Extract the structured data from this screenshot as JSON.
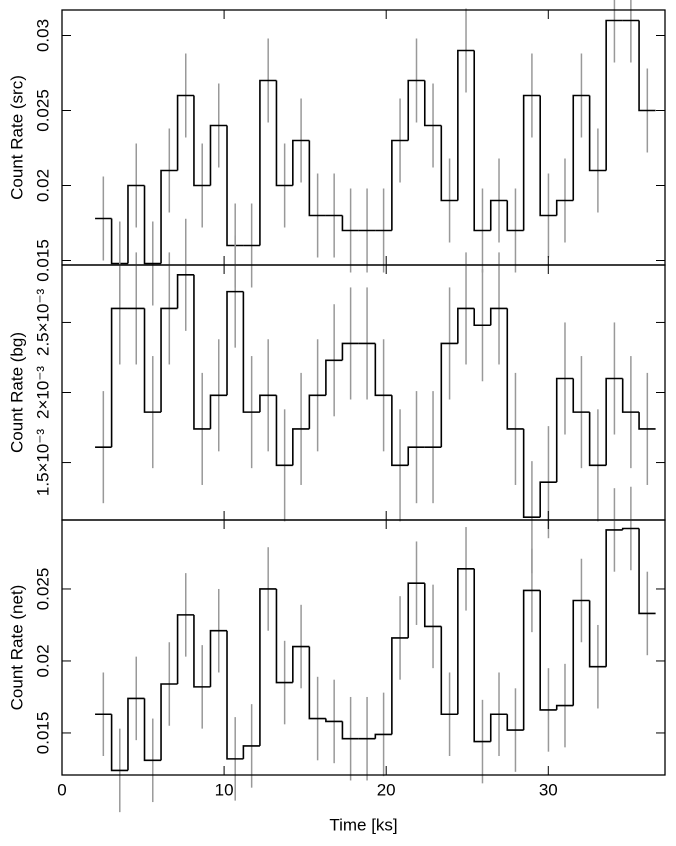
{
  "chart_data": [
    {
      "type": "histogram",
      "ylabel": "Count Rate (src)",
      "color": "#000000",
      "error_color": "#999999",
      "bins": [
        2.04,
        3.06,
        4.07,
        5.09,
        6.11,
        7.13,
        8.14,
        9.16,
        10.18,
        11.19,
        12.21,
        13.23,
        14.24,
        15.26,
        16.28,
        17.3,
        18.31,
        19.33,
        20.35,
        21.36,
        22.38,
        23.4,
        24.42,
        25.43,
        26.45,
        27.47,
        28.48,
        29.5,
        30.52,
        31.54,
        32.55,
        33.57,
        34.59,
        35.6,
        36.62
      ],
      "values": [
        0.0178,
        0.0148,
        0.02,
        0.0148,
        0.021,
        0.026,
        0.02,
        0.024,
        0.016,
        0.016,
        0.027,
        0.02,
        0.023,
        0.018,
        0.018,
        0.017,
        0.017,
        0.017,
        0.023,
        0.027,
        0.024,
        0.019,
        0.029,
        0.017,
        0.019,
        0.017,
        0.026,
        0.018,
        0.019,
        0.026,
        0.021,
        0.031,
        0.031,
        0.025
      ],
      "errors": [
        0.0028,
        0.0028,
        0.0028,
        0.0028,
        0.0028,
        0.0028,
        0.0028,
        0.0028,
        0.0028,
        0.0028,
        0.0028,
        0.0028,
        0.0028,
        0.0028,
        0.0028,
        0.0028,
        0.0028,
        0.0028,
        0.0028,
        0.0028,
        0.0028,
        0.0028,
        0.0028,
        0.0028,
        0.0028,
        0.0028,
        0.0028,
        0.0028,
        0.0028,
        0.0028,
        0.0028,
        0.0028,
        0.0028,
        0.0028
      ],
      "xlim": [
        0,
        37.2
      ],
      "xticks": [
        0,
        10,
        20,
        30
      ],
      "ylim": [
        0.0147,
        0.0317
      ],
      "yticks": [
        0.015,
        0.02,
        0.025,
        0.03
      ]
    },
    {
      "type": "histogram",
      "ylabel": "Count Rate (bg)",
      "color": "#000000",
      "error_color": "#999999",
      "bins": [
        2.04,
        3.06,
        4.07,
        5.09,
        6.11,
        7.13,
        8.14,
        9.16,
        10.18,
        11.19,
        12.21,
        13.23,
        14.24,
        15.26,
        16.28,
        17.3,
        18.31,
        19.33,
        20.35,
        21.36,
        22.38,
        23.4,
        24.42,
        25.43,
        26.45,
        27.47,
        28.48,
        29.5,
        30.52,
        31.54,
        32.55,
        33.57,
        34.59,
        35.6,
        36.62
      ],
      "values": [
        0.00161,
        0.0026,
        0.0026,
        0.00186,
        0.0026,
        0.00284,
        0.00174,
        0.00198,
        0.00272,
        0.00186,
        0.00198,
        0.00148,
        0.00174,
        0.00198,
        0.00223,
        0.00235,
        0.00235,
        0.00198,
        0.00148,
        0.00161,
        0.00161,
        0.00235,
        0.0026,
        0.00248,
        0.0026,
        0.00174,
        0.00111,
        0.00136,
        0.0021,
        0.00186,
        0.00148,
        0.0021,
        0.00186,
        0.00174
      ],
      "errors": [
        0.0004,
        0.0004,
        0.0004,
        0.0004,
        0.0004,
        0.0004,
        0.0004,
        0.0004,
        0.0004,
        0.0004,
        0.0004,
        0.0004,
        0.0004,
        0.0004,
        0.0004,
        0.0004,
        0.0004,
        0.0004,
        0.0004,
        0.0004,
        0.0004,
        0.0004,
        0.0004,
        0.0004,
        0.0004,
        0.0004,
        0.0004,
        0.0004,
        0.0004,
        0.0004,
        0.0004,
        0.0004,
        0.0004,
        0.0004
      ],
      "xlim": [
        0,
        37.2
      ],
      "xticks": [
        0,
        10,
        20,
        30
      ],
      "ylim": [
        0.00109,
        0.00291
      ],
      "yticks": [
        {
          "value": 0.0015,
          "label": "1.5×10⁻³"
        },
        {
          "value": 0.002,
          "label": "2×10⁻³"
        },
        {
          "value": 0.0025,
          "label": "2.5×10⁻³"
        }
      ]
    },
    {
      "type": "histogram",
      "ylabel": "Count Rate (net)",
      "xlabel": "Time [ks]",
      "color": "#000000",
      "error_color": "#999999",
      "bins": [
        2.04,
        3.06,
        4.07,
        5.09,
        6.11,
        7.13,
        8.14,
        9.16,
        10.18,
        11.19,
        12.21,
        13.23,
        14.24,
        15.26,
        16.28,
        17.3,
        18.31,
        19.33,
        20.35,
        21.36,
        22.38,
        23.4,
        24.42,
        25.43,
        26.45,
        27.47,
        28.48,
        29.5,
        30.52,
        31.54,
        32.55,
        33.57,
        34.59,
        35.6,
        36.62
      ],
      "values": [
        0.0163,
        0.0124,
        0.0174,
        0.0131,
        0.0184,
        0.0232,
        0.0182,
        0.0221,
        0.0132,
        0.0141,
        0.025,
        0.0185,
        0.021,
        0.016,
        0.0158,
        0.0146,
        0.0146,
        0.0149,
        0.0216,
        0.0254,
        0.0224,
        0.0163,
        0.0264,
        0.0144,
        0.0163,
        0.0152,
        0.0249,
        0.0166,
        0.0169,
        0.0242,
        0.0196,
        0.0291,
        0.0292,
        0.0233
      ],
      "errors": [
        0.0029,
        0.0029,
        0.0029,
        0.0029,
        0.0029,
        0.0029,
        0.0029,
        0.0029,
        0.0029,
        0.0029,
        0.0029,
        0.0029,
        0.0029,
        0.0029,
        0.0029,
        0.0029,
        0.0029,
        0.0029,
        0.0029,
        0.0029,
        0.0029,
        0.0029,
        0.0029,
        0.0029,
        0.0029,
        0.0029,
        0.0029,
        0.0029,
        0.0029,
        0.0029,
        0.0029,
        0.0029,
        0.0029,
        0.0029
      ],
      "xlim": [
        0,
        37.2
      ],
      "xticks": [
        0,
        10,
        20,
        30
      ],
      "ylim": [
        0.01208,
        0.02979
      ],
      "yticks": [
        0.015,
        0.02,
        0.025
      ]
    }
  ]
}
